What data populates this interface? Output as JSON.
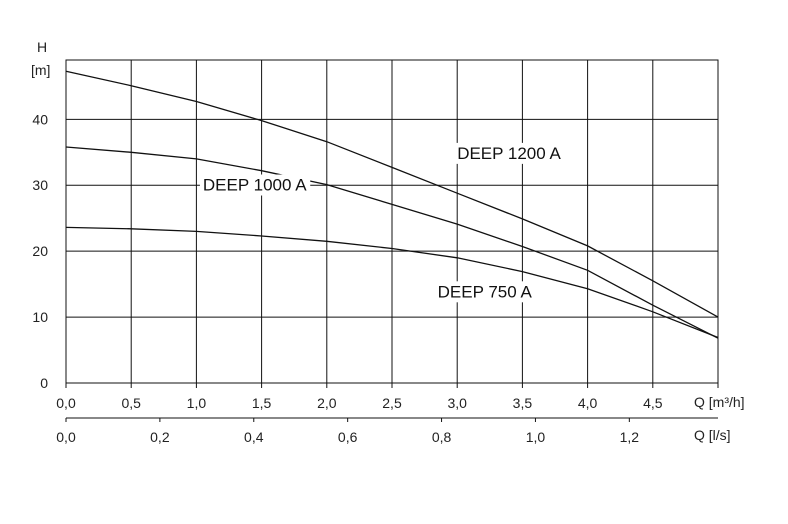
{
  "chart_data": {
    "type": "line",
    "y_axis": {
      "symbol": "H",
      "unit": "[m]",
      "range": [
        0,
        49
      ],
      "ticks": [
        {
          "value": 0,
          "label": "0"
        },
        {
          "value": 10,
          "label": "10"
        },
        {
          "value": 20,
          "label": "20"
        },
        {
          "value": 30,
          "label": "30"
        },
        {
          "value": 40,
          "label": "40"
        }
      ]
    },
    "x_axis": {
      "label": "Q [m³/h]",
      "range": [
        0,
        5.0
      ],
      "ticks": [
        {
          "value": 0.0,
          "label": "0,0"
        },
        {
          "value": 0.5,
          "label": "0,5"
        },
        {
          "value": 1.0,
          "label": "1,0"
        },
        {
          "value": 1.5,
          "label": "1,5"
        },
        {
          "value": 2.0,
          "label": "2,0"
        },
        {
          "value": 2.5,
          "label": "2,5"
        },
        {
          "value": 3.0,
          "label": "3,0"
        },
        {
          "value": 3.5,
          "label": "3,5"
        },
        {
          "value": 4.0,
          "label": "4,0"
        },
        {
          "value": 4.5,
          "label": "4,5"
        }
      ]
    },
    "x_axis_secondary": {
      "label": "Q [l/s]",
      "ticks": [
        {
          "value": 0.0,
          "label": "0,0"
        },
        {
          "value": 0.2,
          "label": "0,2"
        },
        {
          "value": 0.4,
          "label": "0,4"
        },
        {
          "value": 0.6,
          "label": "0,6"
        },
        {
          "value": 0.8,
          "label": "0,8"
        },
        {
          "value": 1.0,
          "label": "1,0"
        },
        {
          "value": 1.2,
          "label": "1,2"
        }
      ]
    },
    "grid": true,
    "series": [
      {
        "name": "DEEP 1200 A",
        "points": [
          [
            0.0,
            47.3
          ],
          [
            0.5,
            45.1
          ],
          [
            1.0,
            42.7
          ],
          [
            1.5,
            39.8
          ],
          [
            2.0,
            36.6
          ],
          [
            2.5,
            32.7
          ],
          [
            3.0,
            28.8
          ],
          [
            3.5,
            24.9
          ],
          [
            4.0,
            20.8
          ],
          [
            4.5,
            15.5
          ],
          [
            5.0,
            10.0
          ]
        ]
      },
      {
        "name": "DEEP 1000 A",
        "points": [
          [
            0.0,
            35.8
          ],
          [
            0.5,
            35.0
          ],
          [
            1.0,
            34.0
          ],
          [
            1.5,
            32.2
          ],
          [
            2.0,
            30.1
          ],
          [
            2.5,
            27.1
          ],
          [
            3.0,
            24.1
          ],
          [
            3.5,
            20.7
          ],
          [
            4.0,
            17.1
          ],
          [
            4.5,
            11.8
          ],
          [
            5.0,
            6.8
          ]
        ]
      },
      {
        "name": "DEEP 750 A",
        "points": [
          [
            0.0,
            23.6
          ],
          [
            0.5,
            23.4
          ],
          [
            1.0,
            23.0
          ],
          [
            1.5,
            22.3
          ],
          [
            2.0,
            21.5
          ],
          [
            2.5,
            20.4
          ],
          [
            3.0,
            19.0
          ],
          [
            3.5,
            16.9
          ],
          [
            4.0,
            14.3
          ],
          [
            4.5,
            10.8
          ],
          [
            5.0,
            6.9
          ]
        ]
      }
    ],
    "annotations": [
      {
        "series": "DEEP 1200 A",
        "text": "DEEP 1200 A",
        "at": [
          3.0,
          34.0
        ]
      },
      {
        "series": "DEEP 1000 A",
        "text": "DEEP 1000 A",
        "at": [
          1.05,
          29.2
        ]
      },
      {
        "series": "DEEP 750 A",
        "text": "DEEP 750 A",
        "at": [
          2.85,
          13.0
        ]
      }
    ]
  }
}
